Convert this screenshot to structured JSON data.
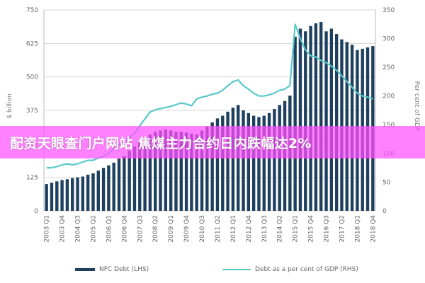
{
  "chart_data": {
    "type": "bar+line",
    "title": "",
    "x_tick_labels": [
      "2003 Q1",
      "2003 Q4",
      "2004 Q3",
      "2005 Q2",
      "2006 Q1",
      "2006 Q4",
      "2007 Q3",
      "2008 Q2",
      "2009 Q1",
      "2009 Q4",
      "2010 Q3",
      "2011 Q2",
      "2012 Q1",
      "2012 Q4",
      "2013 Q3",
      "2014 Q2",
      "2015 Q1",
      "2015 Q4",
      "2016 Q3",
      "2017 Q2",
      "2018 Q1",
      "2018 Q4"
    ],
    "y_left": {
      "label": "$ billion",
      "range": [
        0,
        750
      ],
      "ticks": [
        0,
        125,
        250,
        375,
        500,
        625,
        750
      ]
    },
    "y_right": {
      "label": "Per cent of GDP",
      "range": [
        0,
        350
      ],
      "ticks": [
        0,
        50,
        100,
        150,
        200,
        250,
        300,
        350
      ]
    },
    "grid": true,
    "legend_position": "bottom",
    "series": [
      {
        "name": "NFC Debt (LHS)",
        "type": "bar",
        "axis": "left",
        "color": "#1f3f5f",
        "values": [
          100,
          105,
          110,
          115,
          118,
          122,
          125,
          128,
          135,
          140,
          150,
          160,
          170,
          180,
          195,
          205,
          225,
          240,
          255,
          270,
          285,
          295,
          300,
          305,
          300,
          295,
          295,
          292,
          288,
          285,
          300,
          315,
          330,
          345,
          355,
          370,
          385,
          395,
          375,
          365,
          355,
          350,
          355,
          365,
          380,
          395,
          410,
          430,
          650,
          680,
          670,
          690,
          700,
          705,
          670,
          680,
          660,
          640,
          630,
          620,
          600,
          605,
          610,
          615
        ]
      },
      {
        "name": "Debt as a per cent of GDP (RHS)",
        "type": "line",
        "axis": "right",
        "color": "#5bc8c8",
        "values": [
          75,
          75,
          77,
          80,
          82,
          80,
          82,
          85,
          88,
          88,
          92,
          95,
          100,
          108,
          115,
          120,
          128,
          135,
          148,
          160,
          172,
          176,
          178,
          180,
          182,
          185,
          188,
          186,
          183,
          195,
          198,
          200,
          203,
          205,
          210,
          218,
          225,
          228,
          218,
          212,
          205,
          200,
          200,
          202,
          205,
          210,
          212,
          218,
          325,
          300,
          280,
          270,
          268,
          262,
          258,
          252,
          245,
          235,
          225,
          215,
          205,
          200,
          198,
          195
        ]
      }
    ]
  },
  "banner": {
    "text": "配资天眼查门户网站 焦煤主力合约日内跌幅达2%"
  }
}
